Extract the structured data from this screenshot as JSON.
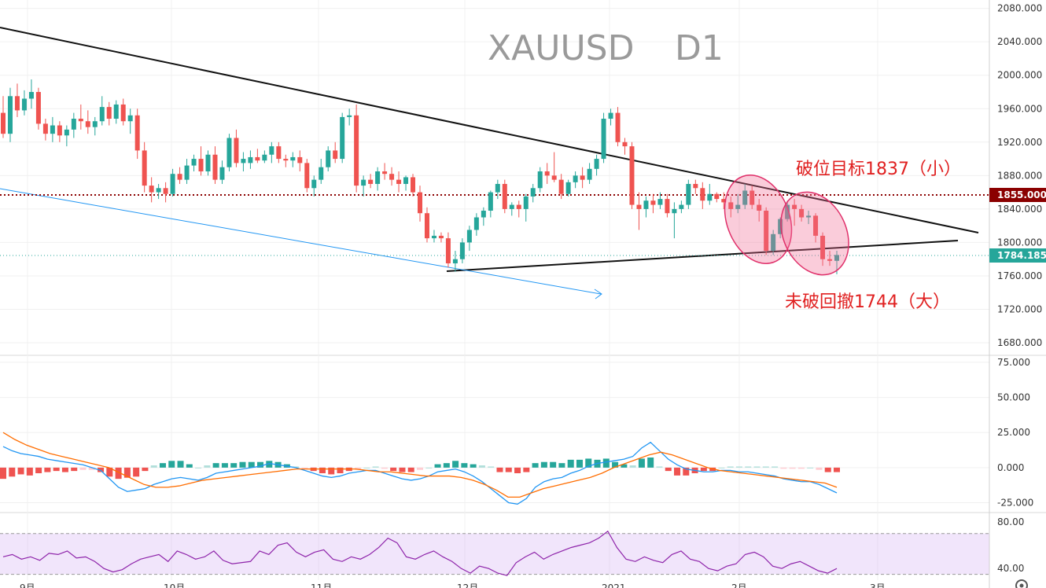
{
  "chart_data": {
    "type": "candlestick",
    "title": "XAUUSD",
    "timeframe": "D1",
    "price_axis": {
      "ticks": [
        "2080.000",
        "2040.000",
        "2000.000",
        "1960.000",
        "1920.000",
        "1880.000",
        "1840.000",
        "1800.000",
        "1760.000",
        "1720.000",
        "1680.000"
      ],
      "tick_values": [
        2080,
        2040,
        2000,
        1960,
        1920,
        1880,
        1840,
        1800,
        1760,
        1720,
        1680
      ],
      "ylim": [
        1665,
        2090
      ]
    },
    "time_axis": {
      "labels": [
        "9月",
        "10月",
        "11月",
        "12月",
        "2021",
        "2月",
        "3月"
      ]
    },
    "price_tags": {
      "level": {
        "text": "1855.000",
        "value": 1855,
        "color": "#8b0000"
      },
      "last": {
        "text": "1784.185",
        "value": 1784.185,
        "color": "#26a69a"
      }
    },
    "annotations": {
      "upper": "破位目标1837（小）",
      "lower": "未破回撤1744（大）"
    },
    "candles": [
      [
        1955,
        1975,
        1925,
        1930
      ],
      [
        1930,
        1985,
        1920,
        1975
      ],
      [
        1975,
        1990,
        1950,
        1958
      ],
      [
        1958,
        1982,
        1952,
        1972
      ],
      [
        1972,
        1995,
        1960,
        1980
      ],
      [
        1980,
        1985,
        1935,
        1942
      ],
      [
        1942,
        1948,
        1922,
        1930
      ],
      [
        1930,
        1950,
        1920,
        1940
      ],
      [
        1940,
        1945,
        1920,
        1928
      ],
      [
        1928,
        1940,
        1915,
        1935
      ],
      [
        1935,
        1955,
        1925,
        1948
      ],
      [
        1948,
        1965,
        1935,
        1945
      ],
      [
        1945,
        1958,
        1930,
        1938
      ],
      [
        1938,
        1950,
        1928,
        1945
      ],
      [
        1945,
        1975,
        1940,
        1962
      ],
      [
        1962,
        1968,
        1940,
        1948
      ],
      [
        1948,
        1970,
        1942,
        1965
      ],
      [
        1965,
        1972,
        1940,
        1945
      ],
      [
        1945,
        1960,
        1930,
        1952
      ],
      [
        1952,
        1960,
        1900,
        1910
      ],
      [
        1910,
        1920,
        1860,
        1868
      ],
      [
        1868,
        1878,
        1848,
        1860
      ],
      [
        1860,
        1870,
        1852,
        1865
      ],
      [
        1865,
        1872,
        1848,
        1858
      ],
      [
        1858,
        1888,
        1855,
        1882
      ],
      [
        1882,
        1890,
        1870,
        1875
      ],
      [
        1875,
        1900,
        1870,
        1892
      ],
      [
        1892,
        1905,
        1885,
        1900
      ],
      [
        1900,
        1915,
        1880,
        1885
      ],
      [
        1885,
        1910,
        1880,
        1905
      ],
      [
        1905,
        1915,
        1870,
        1875
      ],
      [
        1875,
        1898,
        1870,
        1890
      ],
      [
        1890,
        1930,
        1885,
        1925
      ],
      [
        1925,
        1935,
        1890,
        1895
      ],
      [
        1895,
        1908,
        1885,
        1900
      ],
      [
        1895,
        1910,
        1888,
        1902
      ],
      [
        1902,
        1912,
        1895,
        1898
      ],
      [
        1898,
        1910,
        1895,
        1905
      ],
      [
        1905,
        1920,
        1895,
        1915
      ],
      [
        1915,
        1920,
        1895,
        1900
      ],
      [
        1900,
        1905,
        1890,
        1898
      ],
      [
        1898,
        1908,
        1890,
        1902
      ],
      [
        1902,
        1910,
        1885,
        1895
      ],
      [
        1895,
        1900,
        1860,
        1865
      ],
      [
        1865,
        1880,
        1855,
        1875
      ],
      [
        1875,
        1900,
        1870,
        1890
      ],
      [
        1890,
        1915,
        1885,
        1910
      ],
      [
        1910,
        1920,
        1895,
        1900
      ],
      [
        1900,
        1955,
        1895,
        1950
      ],
      [
        1950,
        1960,
        1940,
        1952
      ],
      [
        1952,
        1965,
        1860,
        1868
      ],
      [
        1868,
        1880,
        1855,
        1875
      ],
      [
        1875,
        1882,
        1865,
        1870
      ],
      [
        1870,
        1890,
        1862,
        1885
      ],
      [
        1885,
        1895,
        1875,
        1882
      ],
      [
        1882,
        1890,
        1868,
        1875
      ],
      [
        1875,
        1885,
        1860,
        1870
      ],
      [
        1870,
        1880,
        1862,
        1878
      ],
      [
        1878,
        1882,
        1855,
        1860
      ],
      [
        1860,
        1868,
        1825,
        1835
      ],
      [
        1835,
        1842,
        1800,
        1805
      ],
      [
        1805,
        1815,
        1800,
        1808
      ],
      [
        1808,
        1812,
        1800,
        1805
      ],
      [
        1805,
        1812,
        1770,
        1775
      ],
      [
        1775,
        1790,
        1765,
        1780
      ],
      [
        1780,
        1805,
        1775,
        1800
      ],
      [
        1800,
        1820,
        1790,
        1815
      ],
      [
        1815,
        1835,
        1808,
        1830
      ],
      [
        1830,
        1842,
        1820,
        1838
      ],
      [
        1838,
        1862,
        1830,
        1860
      ],
      [
        1860,
        1875,
        1852,
        1870
      ],
      [
        1870,
        1875,
        1835,
        1840
      ],
      [
        1840,
        1848,
        1832,
        1845
      ],
      [
        1845,
        1850,
        1830,
        1840
      ],
      [
        1840,
        1858,
        1825,
        1855
      ],
      [
        1855,
        1870,
        1848,
        1865
      ],
      [
        1865,
        1890,
        1860,
        1885
      ],
      [
        1885,
        1895,
        1870,
        1880
      ],
      [
        1880,
        1908,
        1872,
        1875
      ],
      [
        1875,
        1882,
        1852,
        1858
      ],
      [
        1858,
        1875,
        1855,
        1872
      ],
      [
        1872,
        1885,
        1865,
        1880
      ],
      [
        1880,
        1890,
        1865,
        1875
      ],
      [
        1875,
        1895,
        1870,
        1888
      ],
      [
        1888,
        1905,
        1880,
        1900
      ],
      [
        1900,
        1955,
        1895,
        1948
      ],
      [
        1948,
        1960,
        1940,
        1955
      ],
      [
        1955,
        1962,
        1915,
        1920
      ],
      [
        1920,
        1925,
        1905,
        1915
      ],
      [
        1915,
        1920,
        1840,
        1845
      ],
      [
        1845,
        1860,
        1815,
        1840
      ],
      [
        1840,
        1855,
        1830,
        1850
      ],
      [
        1850,
        1858,
        1835,
        1845
      ],
      [
        1845,
        1860,
        1840,
        1852
      ],
      [
        1852,
        1858,
        1830,
        1835
      ],
      [
        1835,
        1848,
        1805,
        1840
      ],
      [
        1840,
        1850,
        1835,
        1845
      ],
      [
        1845,
        1875,
        1840,
        1870
      ],
      [
        1870,
        1875,
        1858,
        1865
      ],
      [
        1865,
        1872,
        1840,
        1850
      ],
      [
        1850,
        1870,
        1845,
        1858
      ],
      [
        1858,
        1860,
        1848,
        1852
      ],
      [
        1852,
        1860,
        1840,
        1848
      ],
      [
        1848,
        1855,
        1830,
        1840
      ],
      [
        1840,
        1858,
        1835,
        1845
      ],
      [
        1845,
        1870,
        1840,
        1862
      ],
      [
        1862,
        1868,
        1840,
        1845
      ],
      [
        1845,
        1852,
        1825,
        1838
      ],
      [
        1838,
        1842,
        1785,
        1790
      ],
      [
        1790,
        1815,
        1785,
        1810
      ],
      [
        1810,
        1830,
        1805,
        1828
      ],
      [
        1828,
        1850,
        1825,
        1845
      ],
      [
        1845,
        1852,
        1820,
        1840
      ],
      [
        1840,
        1845,
        1825,
        1830
      ],
      [
        1830,
        1838,
        1822,
        1832
      ],
      [
        1832,
        1835,
        1800,
        1808
      ],
      [
        1808,
        1812,
        1772,
        1780
      ],
      [
        1780,
        1790,
        1772,
        1778
      ],
      [
        1778,
        1790,
        1762,
        1785
      ]
    ],
    "macd": {
      "ticks": [
        "75.000",
        "50.000",
        "25.000",
        "0.000",
        "-25.000"
      ],
      "tick_values": [
        75,
        50,
        25,
        0,
        -25
      ],
      "ylim": [
        -32,
        80
      ],
      "macd_line": [
        15,
        12,
        10,
        9,
        8,
        6,
        5,
        4,
        3,
        2,
        0,
        -2,
        -8,
        -14,
        -17,
        -16,
        -15,
        -12,
        -10,
        -8,
        -7,
        -8,
        -9,
        -7,
        -4,
        -3,
        -2,
        -1,
        0,
        1,
        3,
        2,
        1,
        0,
        -2,
        -4,
        -6,
        -7,
        -6,
        -4,
        -3,
        -2,
        -2,
        -4,
        -6,
        -8,
        -9,
        -8,
        -6,
        -3,
        -2,
        -1,
        -3,
        -6,
        -10,
        -15,
        -20,
        -25,
        -26,
        -22,
        -14,
        -10,
        -8,
        -7,
        -4,
        -2,
        1,
        3,
        4,
        5,
        6,
        8,
        14,
        18,
        12,
        6,
        2,
        -1,
        -2,
        -3,
        -3,
        -2,
        -2,
        -3,
        -3,
        -4,
        -5,
        -6,
        -8,
        -9,
        -10,
        -10,
        -12,
        -15,
        -18
      ],
      "signal_line": [
        25,
        20,
        16,
        13,
        10,
        8,
        6,
        4,
        2,
        0,
        -4,
        -8,
        -12,
        -14,
        -14,
        -13,
        -11,
        -9,
        -8,
        -7,
        -6,
        -5,
        -4,
        -3,
        -2,
        -1,
        -1,
        -1,
        -1,
        -1,
        -1,
        -2,
        -3,
        -3,
        -4,
        -5,
        -6,
        -6,
        -6,
        -7,
        -9,
        -12,
        -16,
        -21,
        -21,
        -18,
        -15,
        -13,
        -11,
        -9,
        -7,
        -4,
        0,
        3,
        6,
        9,
        11,
        9,
        6,
        3,
        0,
        -2,
        -3,
        -4,
        -5,
        -6,
        -7,
        -8,
        -9,
        -10,
        -11,
        -14
      ]
    },
    "rsi": {
      "ticks": [
        "80.00",
        "40.00"
      ],
      "tick_values": [
        80,
        40
      ],
      "ylim": [
        30,
        88
      ],
      "band": [
        35,
        70
      ],
      "values": [
        50,
        52,
        48,
        50,
        47,
        53,
        52,
        55,
        49,
        50,
        46,
        40,
        37,
        39,
        44,
        48,
        50,
        52,
        46,
        55,
        52,
        48,
        50,
        55,
        47,
        44,
        45,
        46,
        55,
        52,
        60,
        62,
        54,
        50,
        54,
        56,
        48,
        46,
        50,
        48,
        52,
        58,
        66,
        62,
        50,
        48,
        52,
        55,
        50,
        46,
        40,
        36,
        42,
        40,
        36,
        34,
        45,
        50,
        54,
        48,
        52,
        55,
        58,
        60,
        62,
        66,
        72,
        58,
        48,
        46,
        50,
        47,
        45,
        52,
        55,
        48,
        46,
        40,
        38,
        42,
        44,
        52,
        54,
        50,
        42,
        40,
        44,
        46,
        42,
        38,
        36,
        40
      ]
    }
  }
}
